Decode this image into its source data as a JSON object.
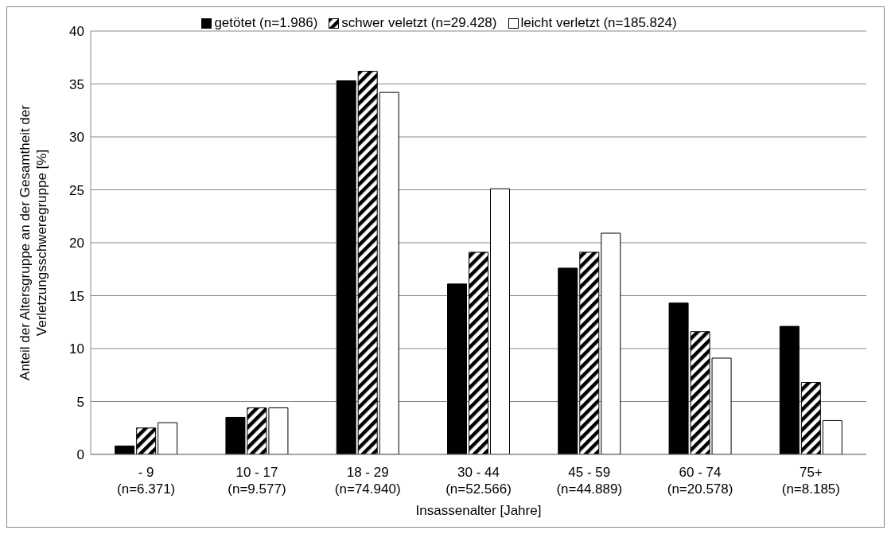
{
  "chart_data": {
    "type": "bar",
    "xlabel": "Insassenalter [Jahre]",
    "ylabel": "Anteil der Altersgruppe an der Gesamtheit der Verletzungsschweregruppe [%]",
    "categories": [
      "- 9\n(n=6.371)",
      "10 - 17\n(n=9.577)",
      "18 - 29\n(n=74.940)",
      "30 - 44\n(n=52.566)",
      "45 - 59\n(n=44.889)",
      "60 - 74\n(n=20.578)",
      "75+\n(n=8.185)"
    ],
    "series": [
      {
        "name": "getötet (n=1.986)",
        "color": "#000000",
        "values": [
          0.8,
          3.5,
          35.3,
          16.1,
          17.6,
          14.3,
          12.1
        ]
      },
      {
        "name": "schwer veletzt (n=29.428)",
        "color": "#000000",
        "values": [
          2.5,
          4.4,
          36.2,
          19.1,
          19.1,
          11.6,
          6.8
        ]
      },
      {
        "name": "leicht verletzt (n=185.824)",
        "color": "#ffffff",
        "values": [
          3.0,
          4.4,
          34.2,
          25.1,
          20.9,
          9.1,
          3.2
        ]
      }
    ],
    "ylim": [
      0,
      40
    ],
    "yticks": [
      0,
      5,
      10,
      15,
      20,
      25,
      30,
      35,
      40
    ],
    "grid": "y",
    "legend": "top"
  }
}
